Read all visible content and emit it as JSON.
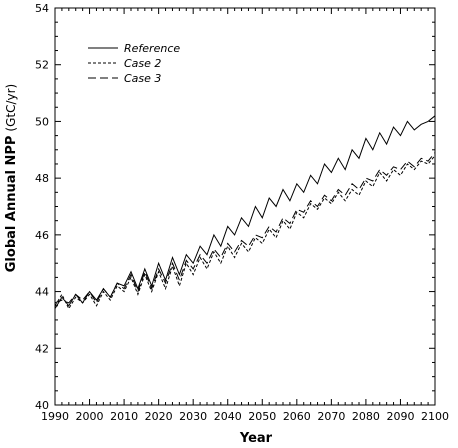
{
  "chart_data": {
    "type": "line",
    "xlabel": "Year",
    "ylabel": "Global Annual NPP",
    "ylabel_unit": "(GtC/yr)",
    "xlim": [
      1990,
      2100
    ],
    "ylim": [
      40,
      54
    ],
    "xticks": [
      1990,
      2000,
      2010,
      2020,
      2030,
      2040,
      2050,
      2060,
      2070,
      2080,
      2090,
      2100
    ],
    "yticks": [
      40,
      42,
      44,
      46,
      48,
      50,
      52,
      54
    ],
    "grid": false,
    "legend_position": "top-left",
    "series": [
      {
        "name": "Reference",
        "dash": "solid",
        "x": [
          1990,
          1992,
          1994,
          1996,
          1998,
          2000,
          2002,
          2004,
          2006,
          2008,
          2010,
          2012,
          2014,
          2016,
          2018,
          2020,
          2022,
          2024,
          2026,
          2028,
          2030,
          2032,
          2034,
          2036,
          2038,
          2040,
          2042,
          2044,
          2046,
          2048,
          2050,
          2052,
          2054,
          2056,
          2058,
          2060,
          2062,
          2064,
          2066,
          2068,
          2070,
          2072,
          2074,
          2076,
          2078,
          2080,
          2082,
          2084,
          2086,
          2088,
          2090,
          2092,
          2094,
          2096,
          2098,
          2100
        ],
        "values": [
          43.4,
          43.8,
          43.5,
          43.9,
          43.6,
          44.0,
          43.7,
          44.1,
          43.8,
          44.3,
          44.2,
          44.7,
          44.1,
          44.8,
          44.2,
          45.0,
          44.4,
          45.2,
          44.6,
          45.3,
          45.0,
          45.6,
          45.3,
          46.0,
          45.6,
          46.3,
          46.0,
          46.6,
          46.3,
          47.0,
          46.6,
          47.3,
          47.0,
          47.6,
          47.2,
          47.8,
          47.5,
          48.1,
          47.8,
          48.5,
          48.2,
          48.7,
          48.3,
          49.0,
          48.7,
          49.4,
          49.0,
          49.6,
          49.2,
          49.8,
          49.5,
          50.0,
          49.7,
          49.9,
          50.0,
          50.2
        ]
      },
      {
        "name": "Case 2",
        "dash": "short-dash",
        "x": [
          1990,
          1992,
          1994,
          1996,
          1998,
          2000,
          2002,
          2004,
          2006,
          2008,
          2010,
          2012,
          2014,
          2016,
          2018,
          2020,
          2022,
          2024,
          2026,
          2028,
          2030,
          2032,
          2034,
          2036,
          2038,
          2040,
          2042,
          2044,
          2046,
          2048,
          2050,
          2052,
          2054,
          2056,
          2058,
          2060,
          2062,
          2064,
          2066,
          2068,
          2070,
          2072,
          2074,
          2076,
          2078,
          2080,
          2082,
          2084,
          2086,
          2088,
          2090,
          2092,
          2094,
          2096,
          2098,
          2100
        ],
        "values": [
          43.5,
          43.9,
          43.4,
          43.8,
          43.6,
          43.9,
          43.5,
          44.0,
          43.7,
          44.2,
          44.0,
          44.5,
          43.9,
          44.6,
          44.0,
          44.7,
          44.1,
          44.9,
          44.2,
          45.0,
          44.6,
          45.2,
          44.8,
          45.4,
          45.0,
          45.6,
          45.2,
          45.7,
          45.4,
          45.9,
          45.7,
          46.2,
          45.9,
          46.5,
          46.2,
          46.8,
          46.6,
          47.1,
          46.9,
          47.3,
          47.1,
          47.5,
          47.2,
          47.6,
          47.4,
          47.9,
          47.7,
          48.2,
          47.9,
          48.3,
          48.1,
          48.5,
          48.3,
          48.6,
          48.5,
          48.8
        ]
      },
      {
        "name": "Case 3",
        "dash": "long-dash",
        "x": [
          1990,
          1992,
          1994,
          1996,
          1998,
          2000,
          2002,
          2004,
          2006,
          2008,
          2010,
          2012,
          2014,
          2016,
          2018,
          2020,
          2022,
          2024,
          2026,
          2028,
          2030,
          2032,
          2034,
          2036,
          2038,
          2040,
          2042,
          2044,
          2046,
          2048,
          2050,
          2052,
          2054,
          2056,
          2058,
          2060,
          2062,
          2064,
          2066,
          2068,
          2070,
          2072,
          2074,
          2076,
          2078,
          2080,
          2082,
          2084,
          2086,
          2088,
          2090,
          2092,
          2094,
          2096,
          2098,
          2100
        ],
        "values": [
          43.6,
          43.7,
          43.6,
          43.9,
          43.7,
          44.0,
          43.6,
          44.1,
          43.8,
          44.3,
          44.1,
          44.6,
          44.0,
          44.7,
          44.1,
          44.8,
          44.3,
          45.0,
          44.4,
          45.1,
          44.8,
          45.3,
          45.0,
          45.5,
          45.2,
          45.7,
          45.4,
          45.8,
          45.6,
          46.0,
          45.9,
          46.3,
          46.1,
          46.6,
          46.4,
          46.9,
          46.8,
          47.2,
          47.0,
          47.4,
          47.2,
          47.6,
          47.4,
          47.8,
          47.6,
          48.0,
          47.9,
          48.3,
          48.1,
          48.4,
          48.3,
          48.6,
          48.4,
          48.7,
          48.6,
          48.9
        ]
      }
    ]
  }
}
